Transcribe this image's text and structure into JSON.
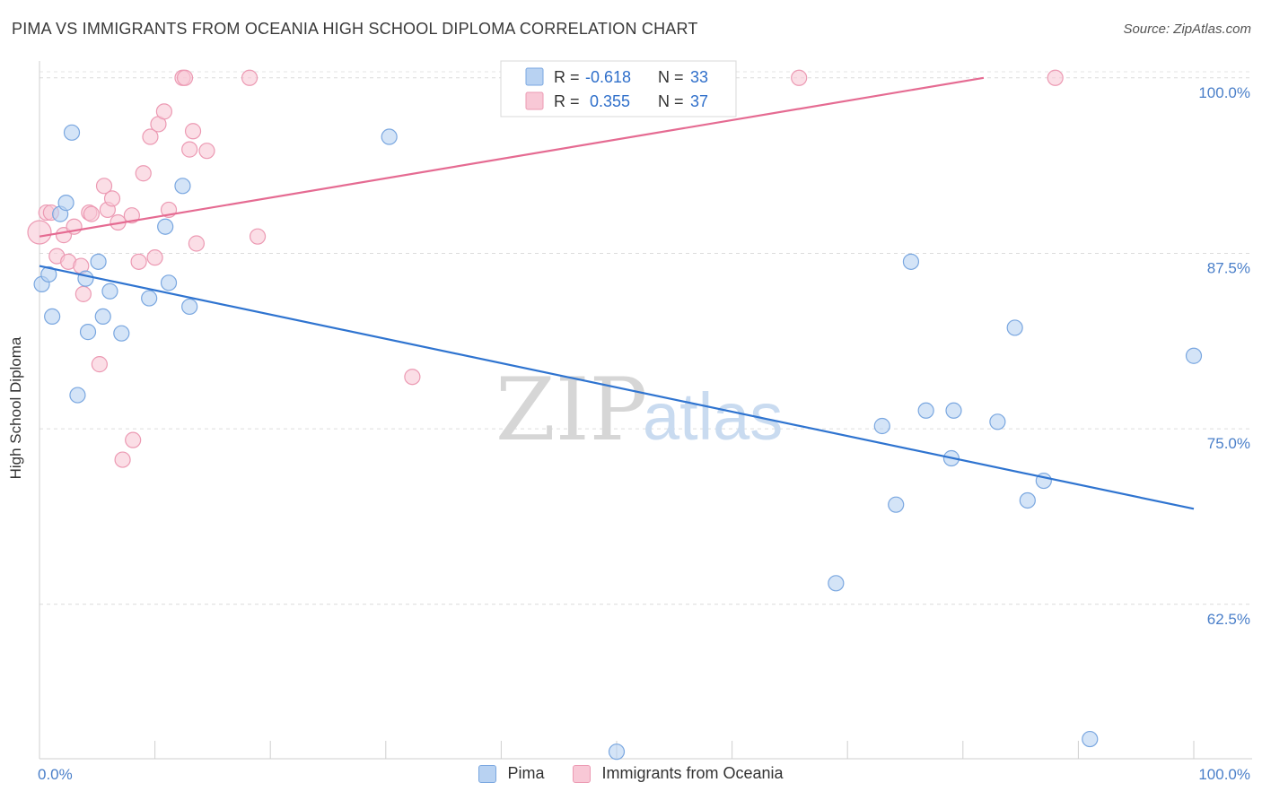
{
  "header": {
    "title": "PIMA VS IMMIGRANTS FROM OCEANIA HIGH SCHOOL DIPLOMA CORRELATION CHART",
    "source": "Source: ZipAtlas.com"
  },
  "watermark": {
    "zip": "ZIP",
    "atlas": "atlas"
  },
  "colors": {
    "pima_fill": "#b8d2f2",
    "pima_stroke": "#7aa7e0",
    "pima_line": "#2f74d0",
    "oceania_fill": "#f8c8d6",
    "oceania_stroke": "#ec9ab3",
    "oceania_line": "#e56b92",
    "tick_label": "#4a7fc9"
  },
  "legend_top": {
    "rows": [
      {
        "r_label": "R =",
        "r_value": "-0.618",
        "n_label": "N =",
        "n_value": "33"
      },
      {
        "r_label": "R =",
        "r_value": "0.355",
        "n_label": "N =",
        "n_value": "37"
      }
    ]
  },
  "legend_bottom": {
    "items": [
      {
        "label": "Pima"
      },
      {
        "label": "Immigrants from Oceania"
      }
    ]
  },
  "chart_data": {
    "type": "scatter",
    "title": "PIMA VS IMMIGRANTS FROM OCEANIA HIGH SCHOOL DIPLOMA CORRELATION CHART",
    "xlabel": "",
    "ylabel": "High School Diploma",
    "xlim": [
      0,
      100
    ],
    "ylim": [
      51.5,
      101.2
    ],
    "x_tick_labels": [
      {
        "value": 0,
        "label": "0.0%"
      },
      {
        "value": 100,
        "label": "100.0%"
      }
    ],
    "x_minor_ticks": [
      0,
      10,
      20,
      30,
      40,
      50,
      60,
      70,
      80,
      90,
      100
    ],
    "y_ticks": [
      {
        "value": 100.0,
        "label": "100.0%"
      },
      {
        "value": 87.5,
        "label": "87.5%"
      },
      {
        "value": 75.0,
        "label": "75.0%"
      },
      {
        "value": 62.5,
        "label": "62.5%"
      }
    ],
    "grid": true,
    "series": [
      {
        "name": "Pima",
        "R": -0.618,
        "N": 33,
        "trend": {
          "x0": 0,
          "y0": 86.6,
          "x1": 100,
          "y1": 69.3
        },
        "points": [
          [
            0.2,
            85.3
          ],
          [
            0.8,
            86.0
          ],
          [
            1.1,
            83.0
          ],
          [
            1.8,
            90.3
          ],
          [
            2.3,
            91.1
          ],
          [
            2.8,
            96.1
          ],
          [
            3.3,
            77.4
          ],
          [
            4.0,
            85.7
          ],
          [
            4.2,
            81.9
          ],
          [
            5.1,
            86.9
          ],
          [
            5.5,
            83.0
          ],
          [
            6.1,
            84.8
          ],
          [
            7.1,
            81.8
          ],
          [
            9.5,
            84.3
          ],
          [
            10.9,
            89.4
          ],
          [
            11.2,
            85.4
          ],
          [
            12.4,
            92.3
          ],
          [
            13.0,
            83.7
          ],
          [
            30.3,
            95.8
          ],
          [
            50.0,
            52.0
          ],
          [
            69.0,
            64.0
          ],
          [
            73.0,
            75.2
          ],
          [
            74.2,
            69.6
          ],
          [
            75.5,
            86.9
          ],
          [
            76.8,
            76.3
          ],
          [
            79.2,
            76.3
          ],
          [
            79.0,
            72.9
          ],
          [
            83.0,
            75.5
          ],
          [
            84.5,
            82.2
          ],
          [
            85.6,
            69.9
          ],
          [
            87.0,
            71.3
          ],
          [
            91.0,
            52.9
          ],
          [
            100.0,
            80.2
          ]
        ]
      },
      {
        "name": "Immigrants from Oceania",
        "R": 0.355,
        "N": 37,
        "trend": {
          "x0": 0,
          "y0": 88.7,
          "x1": 81.8,
          "y1": 100.0
        },
        "points": [
          [
            0.0,
            89.0
          ],
          [
            0.6,
            90.4
          ],
          [
            1.0,
            90.4
          ],
          [
            1.5,
            87.3
          ],
          [
            2.1,
            88.8
          ],
          [
            2.5,
            86.9
          ],
          [
            3.0,
            89.4
          ],
          [
            3.6,
            86.6
          ],
          [
            3.8,
            84.6
          ],
          [
            4.3,
            90.4
          ],
          [
            4.5,
            90.3
          ],
          [
            5.2,
            79.6
          ],
          [
            5.6,
            92.3
          ],
          [
            5.9,
            90.6
          ],
          [
            6.3,
            91.4
          ],
          [
            6.8,
            89.7
          ],
          [
            7.2,
            72.8
          ],
          [
            8.0,
            90.2
          ],
          [
            8.1,
            74.2
          ],
          [
            8.6,
            86.9
          ],
          [
            9.0,
            93.2
          ],
          [
            9.6,
            95.8
          ],
          [
            10.0,
            87.2
          ],
          [
            10.3,
            96.7
          ],
          [
            10.8,
            97.6
          ],
          [
            11.2,
            90.6
          ],
          [
            12.4,
            100.0
          ],
          [
            12.6,
            100.0
          ],
          [
            13.0,
            94.9
          ],
          [
            13.3,
            96.2
          ],
          [
            13.6,
            88.2
          ],
          [
            14.5,
            94.8
          ],
          [
            18.2,
            100.0
          ],
          [
            18.9,
            88.7
          ],
          [
            32.3,
            78.7
          ],
          [
            65.8,
            100.0
          ],
          [
            88.0,
            100.0
          ]
        ]
      }
    ]
  }
}
